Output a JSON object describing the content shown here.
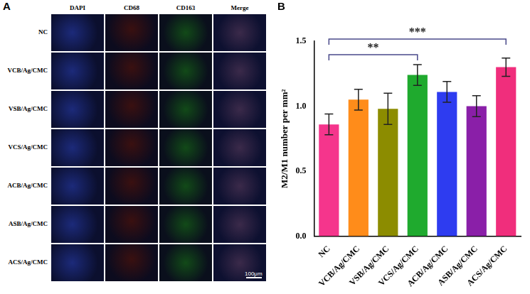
{
  "panels": [
    {
      "letter": "A",
      "image_grid": {
        "columns": [
          "DAPI",
          "CD68",
          "CD163",
          "Merge"
        ],
        "rows": [
          "NC",
          "VCB/Ag/CMC",
          "VSB/Ag/CMC",
          "VCS/Ag/CMC",
          "ACB/Ag/CMC",
          "ASB/Ag/CMC",
          "ACS/Ag/CMC"
        ],
        "scale_bar": "100μm"
      }
    },
    {
      "letter": "B"
    }
  ],
  "chart_data": {
    "type": "bar",
    "y_label": "M2/M1 number per mm²",
    "categories": [
      "NC",
      "VCB/Ag/CMC",
      "VSB/Ag/CMC",
      "VCS/Ag/CMC",
      "ACB/Ag/CMC",
      "ASB/Ag/CMC",
      "ACS/Ag/CMC"
    ],
    "values": [
      0.86,
      1.05,
      0.98,
      1.24,
      1.11,
      1.0,
      1.3
    ],
    "errors": [
      0.08,
      0.08,
      0.12,
      0.08,
      0.08,
      0.08,
      0.07
    ],
    "colors": [
      "#f5358c",
      "#ff8c1a",
      "#8c8c00",
      "#1faa2e",
      "#2e3cf0",
      "#8a1fa8",
      "#f02e7c"
    ],
    "ylim": [
      0,
      1.5
    ],
    "yticks": [
      {
        "value": 0,
        "label": "0.0"
      },
      {
        "value": 0.5,
        "label": "0.5"
      },
      {
        "value": 1,
        "label": "1.0"
      },
      {
        "value": 1.5,
        "label": "1.5"
      }
    ],
    "grid": false,
    "annotations": [
      {
        "from": "NC",
        "to": "VCS/Ag/CMC",
        "label": "**"
      },
      {
        "from": "NC",
        "to": "ACS/Ag/CMC",
        "label": "***"
      }
    ]
  }
}
